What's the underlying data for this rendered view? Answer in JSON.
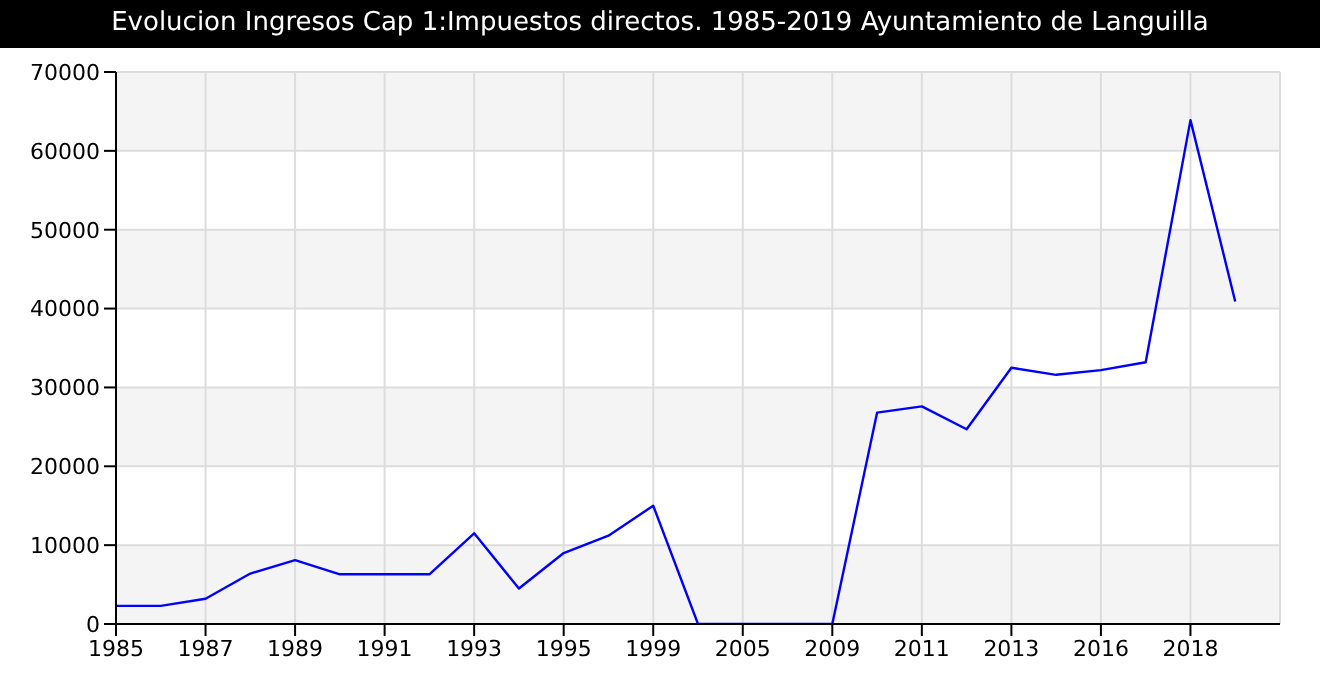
{
  "chart_data": {
    "type": "line",
    "title": "Evolucion Ingresos Cap 1:Impuestos directos. 1985-2019 Ayuntamiento de Languilla",
    "categories": [
      "1985",
      null,
      "1987",
      null,
      "1989",
      null,
      "1991",
      null,
      "1993",
      null,
      "1995",
      null,
      "1999",
      null,
      "2005",
      null,
      "2009",
      null,
      "2011",
      null,
      "2013",
      null,
      "2016",
      null,
      "2018",
      null
    ],
    "series": [
      {
        "color": "#0000ff",
        "values": [
          2300,
          2300,
          3200,
          6400,
          8100,
          6300,
          6300,
          6300,
          11500,
          4500,
          9000,
          11200,
          15000,
          0,
          0,
          0,
          0,
          26800,
          27600,
          24700,
          32500,
          31600,
          32200,
          33200,
          63900,
          40900
        ]
      }
    ],
    "ylim": [
      0,
      70000
    ],
    "yticks": [
      0,
      10000,
      20000,
      30000,
      40000,
      50000,
      60000,
      70000
    ],
    "grid": true,
    "legend": false,
    "marker": "none",
    "line_style": "solid"
  }
}
